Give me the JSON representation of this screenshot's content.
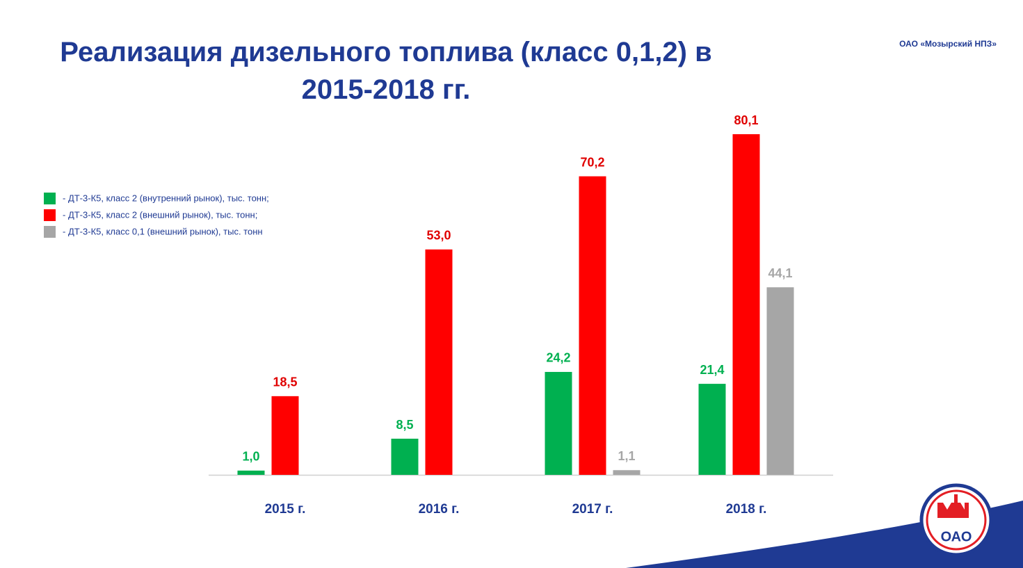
{
  "chart_data": {
    "type": "bar",
    "title": "Реализация дизельного топлива (класс 0,1,2) в 2015-2018 гг.",
    "company": "ОАО «Мозырский НПЗ»",
    "logo_text": "ОАО",
    "categories": [
      "2015 г.",
      "2016 г.",
      "2017 г.",
      "2018 г."
    ],
    "series": [
      {
        "name": "- ДТ-3-К5, класс 2 (внутренний рынок), тыс. тонн;",
        "color": "#00b050",
        "label_color": "#00b050",
        "values": [
          1.0,
          8.5,
          24.2,
          21.4
        ],
        "value_labels": [
          "1,0",
          "8,5",
          "24,2",
          "21,4"
        ]
      },
      {
        "name": "- ДТ-3-К5, класс 2 (внешний рынок), тыс. тонн;",
        "color": "#ff0000",
        "label_color": "#e00000",
        "values": [
          18.5,
          53.0,
          70.2,
          80.1
        ],
        "value_labels": [
          "18,5",
          "53,0",
          "70,2",
          "80,1"
        ]
      },
      {
        "name": "- ДТ-3-К5, класс 0,1 (внешний рынок), тыс. тонн",
        "color": "#a6a6a6",
        "label_color": "#a6a6a6",
        "values": [
          null,
          null,
          1.1,
          44.1
        ],
        "value_labels": [
          null,
          null,
          "1,1",
          "44,1"
        ]
      }
    ],
    "ylim": [
      0,
      90
    ]
  }
}
